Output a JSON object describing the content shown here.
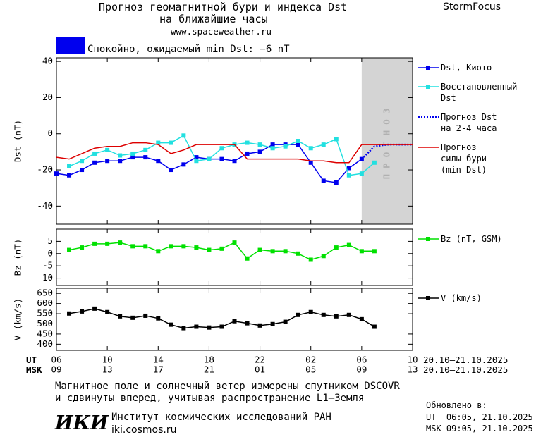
{
  "header": {
    "title": "Прогноз геомагнитной бури и индекса Dst",
    "subtitle": "на ближайшие часы",
    "site": "www.spaceweather.ru",
    "brand": "StormFocus"
  },
  "status": {
    "text": "Спокойно, ожидаемый min Dst: −6 nT",
    "color": "#0000ee"
  },
  "time_axis": {
    "ut": "UT",
    "msk": "MSK",
    "ut_dates": "20.10–21.10.2025",
    "msk_dates": "20.10–21.10.2025"
  },
  "chart_data": [
    {
      "type": "line",
      "ylabel": "Dst (nT)",
      "xlim": [
        6,
        34
      ],
      "ylim": [
        -50,
        42
      ],
      "yticks": [
        -40,
        -20,
        0,
        20,
        40
      ],
      "x": [
        6,
        7,
        8,
        9,
        10,
        11,
        12,
        13,
        14,
        15,
        16,
        17,
        18,
        19,
        20,
        21,
        22,
        23,
        24,
        25,
        26,
        27,
        28,
        29,
        30,
        31,
        32,
        33,
        34
      ],
      "shaded_region": {
        "xlim": [
          30,
          34
        ],
        "label": "ПРОГНОЗ",
        "color": "#d4d4d4"
      },
      "series": [
        {
          "name": "Dst, Киото",
          "color": "#0000ee",
          "marker": "square",
          "values": [
            -22,
            -23,
            -20,
            -16,
            -15,
            -15,
            -13,
            -13,
            -15,
            -20,
            -17,
            -13,
            -14,
            -14,
            -15,
            -11,
            -10,
            -6,
            -6,
            -6,
            -16,
            -26,
            -27,
            -19,
            -14,
            null,
            null,
            null,
            null
          ]
        },
        {
          "name": "Восстановленный\nDst",
          "color": "#22e0e0",
          "marker": "square",
          "values": [
            null,
            -18,
            -15,
            -11,
            -9,
            -12,
            -11,
            -9,
            -5,
            -5,
            -1,
            -15,
            -14,
            -8,
            -6,
            -5,
            -6,
            -8,
            -7,
            -4,
            -8,
            -6,
            -3,
            -23,
            -22,
            -16,
            null,
            null,
            null
          ]
        },
        {
          "name": "Прогноз Dst\nна 2-4 часа",
          "color": "#0000ee",
          "dash": "dotted",
          "values": [
            null,
            null,
            null,
            null,
            null,
            null,
            null,
            null,
            null,
            null,
            null,
            null,
            null,
            null,
            null,
            null,
            null,
            null,
            null,
            null,
            null,
            null,
            null,
            null,
            -14,
            -7,
            -6,
            -6,
            -6
          ]
        },
        {
          "name": "Прогноз\nсилы бури\n(min Dst)",
          "color": "#dd0000",
          "values": [
            -13,
            -14,
            -11,
            -8,
            -7,
            -7,
            -5,
            -5,
            -6,
            -11,
            -9,
            -6,
            -6,
            -6,
            -6,
            -14,
            -14,
            -14,
            -14,
            -14,
            -15,
            -15,
            -16,
            -16,
            -6,
            -6,
            -6,
            -6,
            -6
          ]
        }
      ]
    },
    {
      "type": "line",
      "ylabel": "Bz (nT)",
      "xlim": [
        6,
        34
      ],
      "ylim": [
        -13,
        10
      ],
      "yticks": [
        -10,
        -5,
        0,
        5
      ],
      "x": [
        7,
        8,
        9,
        10,
        11,
        12,
        13,
        14,
        15,
        16,
        17,
        18,
        19,
        20,
        21,
        22,
        23,
        24,
        25,
        26,
        27,
        28,
        29,
        30,
        31
      ],
      "series": [
        {
          "name": "Bz (nT, GSM)",
          "color": "#00e000",
          "marker": "square",
          "values": [
            1.5,
            2.5,
            4,
            4,
            4.5,
            3,
            3,
            1,
            3,
            3,
            2.5,
            1.5,
            2,
            4.5,
            -2,
            1.5,
            1,
            1,
            0,
            -2.5,
            -1,
            2.5,
            3.5,
            1,
            1
          ]
        }
      ]
    },
    {
      "type": "line",
      "ylabel": "V (km/s)",
      "xlim": [
        6,
        34
      ],
      "ylim": [
        370,
        675
      ],
      "yticks": [
        400,
        450,
        500,
        550,
        600,
        650
      ],
      "x": [
        7,
        8,
        9,
        10,
        11,
        12,
        13,
        14,
        15,
        16,
        17,
        18,
        19,
        20,
        21,
        22,
        23,
        24,
        25,
        26,
        27,
        28,
        29,
        30,
        31
      ],
      "xticks": [
        {
          "value": 6,
          "label": "06"
        },
        10,
        14,
        18,
        22,
        {
          "value": 26,
          "label": "02"
        },
        {
          "value": 30,
          "label": "06"
        },
        {
          "value": 34,
          "label": "10"
        }
      ],
      "msk_xticks": [
        {
          "value": 6,
          "label": "09"
        },
        {
          "value": 10,
          "label": "13"
        },
        {
          "value": 14,
          "label": "17"
        },
        {
          "value": 18,
          "label": "21"
        },
        {
          "value": 22,
          "label": "01"
        },
        {
          "value": 26,
          "label": "05"
        },
        {
          "value": 30,
          "label": "09"
        },
        {
          "value": 34,
          "label": "13"
        }
      ],
      "series": [
        {
          "name": "V (km/s)",
          "color": "#000000",
          "marker": "square",
          "values": [
            551,
            561,
            575,
            558,
            537,
            530,
            540,
            527,
            496,
            479,
            486,
            482,
            486,
            513,
            503,
            492,
            499,
            510,
            544,
            558,
            544,
            537,
            544,
            523,
            486
          ]
        }
      ]
    }
  ],
  "footer": {
    "note1": "Магнитное поле и солнечный ветер измерены спутником DSCOVR",
    "note2": "и сдвинуты вперед, учитывая распространение L1–Земля",
    "logo": "ИКИ",
    "institute": "Институт космических исследований РАН",
    "url": "iki.cosmos.ru",
    "updated": "Обновлено в:",
    "updated_ut": "UT  06:05, 21.10.2025",
    "updated_msk": "MSK 09:05, 21.10.2025"
  }
}
